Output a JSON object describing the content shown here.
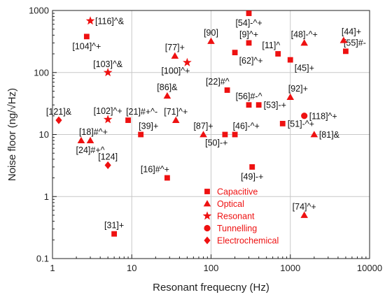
{
  "chart_data": {
    "type": "scatter",
    "xlabel": "Resonant frequecny (Hz)",
    "ylabel": "Noise floor (ng/√Hz)",
    "xscale": "log",
    "yscale": "log",
    "xlim": [
      1,
      10000
    ],
    "ylim": [
      0.1,
      1000
    ],
    "x_ticks": [
      {
        "value": 1,
        "label": "1"
      },
      {
        "value": 10,
        "label": "10"
      },
      {
        "value": 100,
        "label": "100"
      },
      {
        "value": 1000,
        "label": "1000"
      },
      {
        "value": 10000,
        "label": "10000"
      }
    ],
    "y_ticks": [
      {
        "value": 0.1,
        "label": "0.1"
      },
      {
        "value": 1,
        "label": "1"
      },
      {
        "value": 10,
        "label": "10"
      },
      {
        "value": 100,
        "label": "100"
      },
      {
        "value": 1000,
        "label": "1000"
      }
    ],
    "grid": true,
    "marker_color": "#ee1111",
    "legend": {
      "placement": "bottom-center",
      "entries": [
        {
          "name": "Capacitive",
          "marker": "square"
        },
        {
          "name": "Optical",
          "marker": "triangle"
        },
        {
          "name": "Resonant",
          "marker": "star"
        },
        {
          "name": "Tunnelling",
          "marker": "circle"
        },
        {
          "name": "Electrochemical",
          "marker": "diamond"
        }
      ]
    },
    "series": [
      {
        "name": "Capacitive",
        "marker": "square",
        "points": [
          {
            "x": 2.7,
            "y": 380,
            "label": "[104]^+",
            "pos": "below"
          },
          {
            "x": 300,
            "y": 900,
            "label": "[54]-^+",
            "pos": "below"
          },
          {
            "x": 300,
            "y": 300,
            "label": "[9]^+",
            "pos": "above"
          },
          {
            "x": 200,
            "y": 210,
            "label": "[62]^+",
            "pos": "right-below"
          },
          {
            "x": 700,
            "y": 200,
            "label": "[11]^",
            "pos": "above-left"
          },
          {
            "x": 1000,
            "y": 160,
            "label": "[45]+",
            "pos": "right-below"
          },
          {
            "x": 5000,
            "y": 220,
            "label": "[55]#-",
            "pos": "above-right"
          },
          {
            "x": 160,
            "y": 52,
            "label": "[22]#^",
            "pos": "above-left"
          },
          {
            "x": 300,
            "y": 30,
            "label": "[56]#-^",
            "pos": "above"
          },
          {
            "x": 400,
            "y": 30,
            "label": "[53]-+",
            "pos": "right"
          },
          {
            "x": 9,
            "y": 17,
            "label": "[21]#+^-",
            "pos": "above-right"
          },
          {
            "x": 13,
            "y": 10,
            "label": "[39]+",
            "pos": "above-right"
          },
          {
            "x": 150,
            "y": 10,
            "label": "[50]-+",
            "pos": "below-left"
          },
          {
            "x": 200,
            "y": 10,
            "label": "[46]-^+",
            "pos": "above-right"
          },
          {
            "x": 800,
            "y": 15,
            "label": "[51]-^+",
            "pos": "right"
          },
          {
            "x": 28,
            "y": 2,
            "label": "[16]#^+",
            "pos": "above-left"
          },
          {
            "x": 330,
            "y": 3,
            "label": "[49]-+",
            "pos": "below"
          },
          {
            "x": 6,
            "y": 0.25,
            "label": "[31]+",
            "pos": "above"
          }
        ]
      },
      {
        "name": "Optical",
        "marker": "triangle",
        "points": [
          {
            "x": 35,
            "y": 185,
            "label": "[77]+",
            "pos": "above"
          },
          {
            "x": 100,
            "y": 320,
            "label": "[90]",
            "pos": "above"
          },
          {
            "x": 1500,
            "y": 300,
            "label": "[48]-^+",
            "pos": "above"
          },
          {
            "x": 4700,
            "y": 330,
            "label": "[44]+",
            "pos": "above-right"
          },
          {
            "x": 28,
            "y": 42,
            "label": "[86]&",
            "pos": "above"
          },
          {
            "x": 1000,
            "y": 40,
            "label": "[92]+",
            "pos": "above-right"
          },
          {
            "x": 36,
            "y": 17,
            "label": "[71]^+",
            "pos": "above"
          },
          {
            "x": 2.3,
            "y": 8,
            "label": "[18]#^+",
            "pos": "above-right"
          },
          {
            "x": 3,
            "y": 8,
            "label": "[24]#+^",
            "pos": "below"
          },
          {
            "x": 80,
            "y": 10,
            "label": "[87]+",
            "pos": "above"
          },
          {
            "x": 2000,
            "y": 10,
            "label": "[81]&",
            "pos": "right"
          },
          {
            "x": 1500,
            "y": 0.5,
            "label": "[74]^+",
            "pos": "above"
          }
        ]
      },
      {
        "name": "Resonant",
        "marker": "star",
        "points": [
          {
            "x": 3,
            "y": 680,
            "label": "[116]^&",
            "pos": "right"
          },
          {
            "x": 5,
            "y": 100,
            "label": "[103]^&",
            "pos": "above"
          },
          {
            "x": 50,
            "y": 145,
            "label": "[100]^+",
            "pos": "below-left"
          },
          {
            "x": 5,
            "y": 17.5,
            "label": "[102]^+",
            "pos": "above"
          }
        ]
      },
      {
        "name": "Tunnelling",
        "marker": "circle",
        "points": [
          {
            "x": 1500,
            "y": 20,
            "label": "[118]^+",
            "pos": "right"
          }
        ]
      },
      {
        "name": "Electrochemical",
        "marker": "diamond",
        "points": [
          {
            "x": 1.2,
            "y": 17,
            "label": "[121]&",
            "pos": "above"
          },
          {
            "x": 5,
            "y": 3.2,
            "label": "[124]",
            "pos": "above"
          }
        ]
      }
    ]
  }
}
